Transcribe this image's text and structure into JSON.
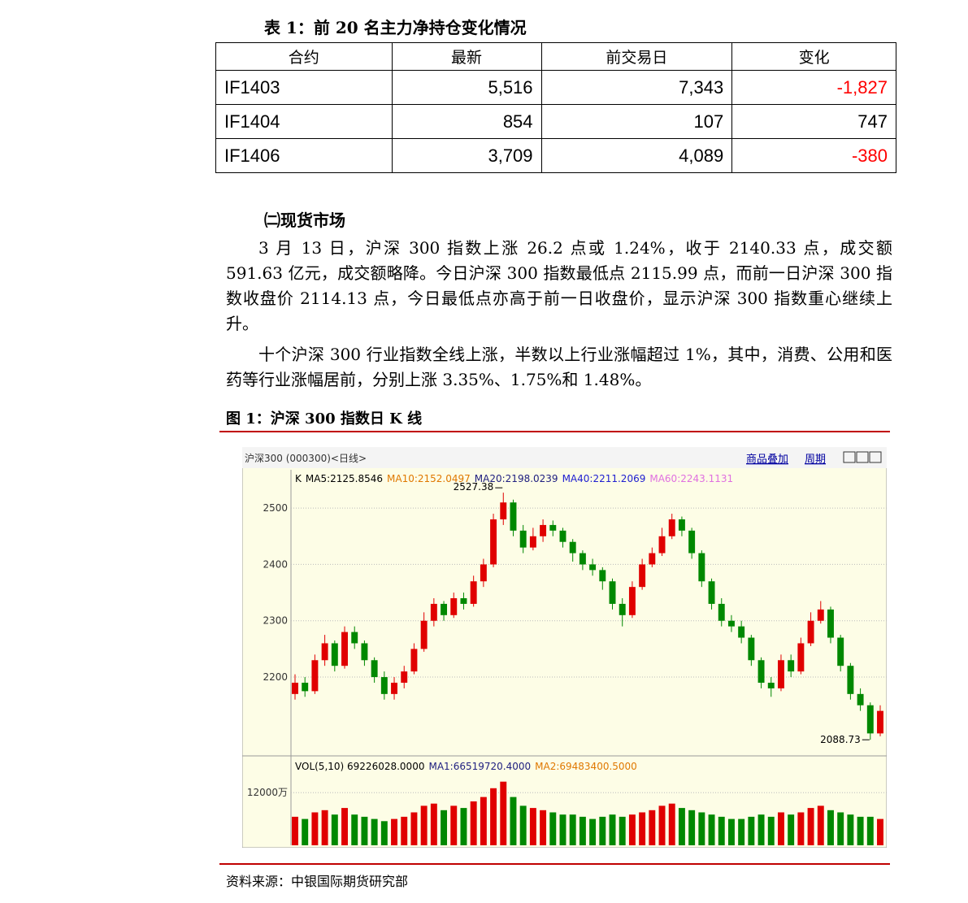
{
  "table_title": "表 1：前 20 名主力净持仓变化情况",
  "table": {
    "header": [
      "合约",
      "最新",
      "前交易日",
      "变化"
    ],
    "rows": [
      [
        "IF1403",
        "5,516",
        "7,343",
        "-1,827"
      ],
      [
        "IF1404",
        "854",
        "107",
        "747"
      ],
      [
        "IF1406",
        "3,709",
        "4,089",
        "-380"
      ]
    ],
    "negative_color": "#ff0000"
  },
  "section_title": "㈡现货市场",
  "paragraphs": [
    "3 月 13 日，沪深 300 指数上涨 26.2 点或 1.24%，收于 2140.33 点，成交额 591.63 亿元，成交额略降。今日沪深 300 指数最低点 2115.99 点，而前一日沪深 300 指数收盘价 2114.13 点，今日最低点亦高于前一日收盘价，显示沪深 300 指数重心继续上升。",
    "十个沪深 300 行业指数全线上涨，半数以上行业涨幅超过 1%，其中，消费、公用和医药等行业涨幅居前，分别上涨 3.35%、1.75%和 1.48%。"
  ],
  "figure_title": "图 1：沪深 300 指数日 K 线",
  "source": "资料来源：中银国际期货研究部",
  "chart_data": {
    "type": "candlestick",
    "title": "沪深300 (000300)<日线>",
    "toolbar": [
      "商品叠加",
      "周期"
    ],
    "legend": [
      {
        "name": "K",
        "color": "#000000"
      },
      {
        "name": "MA5:2125.8546",
        "color": "#000000"
      },
      {
        "name": "MA10:2152.0497",
        "color": "#e07800"
      },
      {
        "name": "MA20:2198.0239",
        "color": "#202080"
      },
      {
        "name": "MA40:2211.2069",
        "color": "#2020d0"
      },
      {
        "name": "MA60:2243.1131",
        "color": "#e070e0"
      }
    ],
    "volume_legend": [
      {
        "name": "VOL(5,10) 69226028.0000",
        "color": "#000000"
      },
      {
        "name": "MA1:66519720.4000",
        "color": "#202080"
      },
      {
        "name": "MA2:69483400.5000",
        "color": "#e07800"
      }
    ],
    "up_color": "#e00000",
    "down_color": "#008800",
    "ylim": [
      2063,
      2568
    ],
    "yticks": [
      2200,
      2300,
      2400,
      2500
    ],
    "grid": true,
    "volume_ylim": [
      0,
      20000
    ],
    "volume_yticks": [
      {
        "value": 12000,
        "label": "12000万"
      }
    ],
    "open": [
      2170,
      2190,
      2175,
      2230,
      2260,
      2220,
      2280,
      2260,
      2230,
      2200,
      2170,
      2190,
      2210,
      2250,
      2300,
      2330,
      2310,
      2340,
      2330,
      2370,
      2400,
      2480,
      2510,
      2460,
      2430,
      2450,
      2470,
      2460,
      2440,
      2420,
      2400,
      2390,
      2370,
      2330,
      2310,
      2360,
      2400,
      2420,
      2450,
      2480,
      2460,
      2420,
      2370,
      2330,
      2300,
      2290,
      2270,
      2230,
      2190,
      2180,
      2230,
      2210,
      2260,
      2300,
      2320,
      2270,
      2220,
      2170,
      2150,
      2100
    ],
    "high": [
      2205,
      2200,
      2240,
      2275,
      2265,
      2290,
      2290,
      2265,
      2235,
      2210,
      2200,
      2220,
      2260,
      2315,
      2340,
      2335,
      2350,
      2350,
      2380,
      2410,
      2490,
      2527.38,
      2515,
      2470,
      2465,
      2480,
      2478,
      2465,
      2445,
      2425,
      2410,
      2395,
      2375,
      2340,
      2370,
      2410,
      2430,
      2465,
      2490,
      2485,
      2465,
      2425,
      2375,
      2340,
      2310,
      2300,
      2275,
      2235,
      2200,
      2240,
      2240,
      2270,
      2315,
      2335,
      2325,
      2275,
      2225,
      2180,
      2155,
      2150
    ],
    "low": [
      2160,
      2165,
      2170,
      2220,
      2210,
      2215,
      2250,
      2220,
      2190,
      2160,
      2160,
      2180,
      2205,
      2245,
      2290,
      2300,
      2305,
      2320,
      2325,
      2360,
      2395,
      2470,
      2450,
      2420,
      2425,
      2440,
      2450,
      2430,
      2405,
      2390,
      2380,
      2355,
      2320,
      2290,
      2305,
      2355,
      2395,
      2415,
      2445,
      2450,
      2410,
      2360,
      2320,
      2290,
      2280,
      2260,
      2220,
      2180,
      2165,
      2175,
      2200,
      2205,
      2255,
      2295,
      2260,
      2210,
      2160,
      2140,
      2088.73,
      2095
    ],
    "close": [
      2190,
      2175,
      2230,
      2260,
      2220,
      2280,
      2260,
      2230,
      2200,
      2170,
      2190,
      2210,
      2250,
      2300,
      2330,
      2310,
      2340,
      2330,
      2370,
      2400,
      2480,
      2510,
      2460,
      2430,
      2450,
      2470,
      2460,
      2440,
      2420,
      2400,
      2390,
      2370,
      2330,
      2310,
      2360,
      2400,
      2420,
      2450,
      2480,
      2460,
      2420,
      2370,
      2330,
      2300,
      2290,
      2270,
      2230,
      2190,
      2180,
      2230,
      2210,
      2260,
      2300,
      2320,
      2270,
      2220,
      2170,
      2150,
      2100,
      2140
    ],
    "volume": [
      6500,
      6000,
      7500,
      8000,
      7000,
      8500,
      7000,
      6500,
      6000,
      5500,
      6000,
      6500,
      7500,
      9000,
      9500,
      8000,
      9000,
      8500,
      10000,
      11000,
      13000,
      14500,
      11000,
      9000,
      8500,
      8000,
      7500,
      7000,
      7000,
      6500,
      6000,
      6500,
      7000,
      6500,
      7000,
      7500,
      8000,
      9000,
      9500,
      8500,
      8000,
      7500,
      7000,
      6500,
      6000,
      6000,
      6500,
      7000,
      6500,
      7500,
      7000,
      7500,
      8500,
      9000,
      8000,
      7500,
      7000,
      6500,
      6500,
      6000
    ]
  }
}
